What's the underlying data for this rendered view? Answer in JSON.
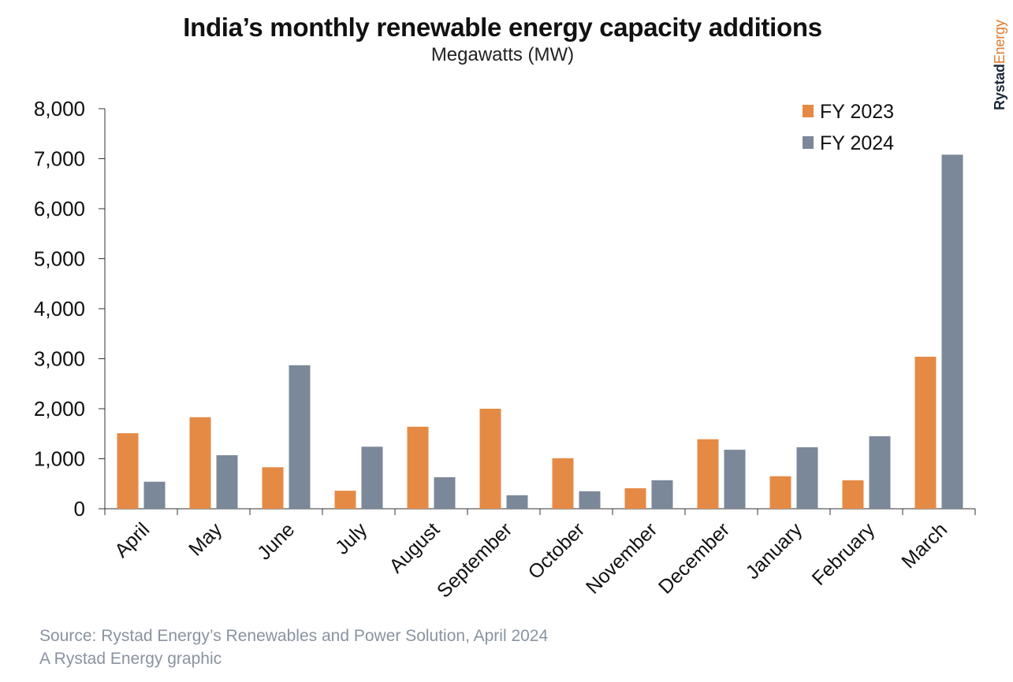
{
  "chart_data": {
    "type": "bar",
    "title": "India’s monthly renewable energy capacity additions",
    "subtitle": "Megawatts (MW)",
    "xlabel": "",
    "ylabel": "",
    "categories": [
      "April",
      "May",
      "June",
      "July",
      "August",
      "September",
      "October",
      "November",
      "December",
      "January",
      "February",
      "March"
    ],
    "series": [
      {
        "name": "FY 2023",
        "color": "#e58a45",
        "values": [
          1510,
          1830,
          830,
          360,
          1640,
          2000,
          1010,
          410,
          1390,
          650,
          570,
          3040
        ]
      },
      {
        "name": "FY 2024",
        "color": "#7b8899",
        "values": [
          540,
          1070,
          2870,
          1240,
          630,
          270,
          350,
          570,
          1180,
          1230,
          1450,
          7080
        ]
      }
    ],
    "ylim": [
      0,
      8000
    ],
    "yticks": [
      0,
      1000,
      2000,
      3000,
      4000,
      5000,
      6000,
      7000,
      8000
    ],
    "ytick_labels": [
      "0",
      "1,000",
      "2,000",
      "3,000",
      "4,000",
      "5,000",
      "6,000",
      "7,000",
      "8,000"
    ],
    "grid": false,
    "legend_position": "top-right"
  },
  "footer": {
    "source": "Source: Rystad Energy’s Renewables and Power Solution, April 2024",
    "credit": "A Rystad Energy graphic"
  },
  "brand": {
    "part1": "Rystad",
    "part2": "Energy"
  }
}
